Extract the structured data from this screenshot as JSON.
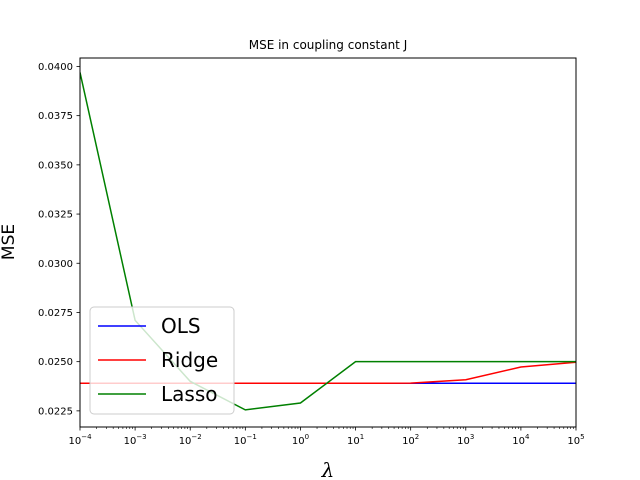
{
  "chart_data": {
    "type": "line",
    "title": "MSE in coupling constant J",
    "xlabel": "λ",
    "ylabel": "MSE",
    "x_scale": "log",
    "x_base_label": "10",
    "x_exponents": [
      -4,
      -3,
      -2,
      -1,
      0,
      1,
      2,
      3,
      4,
      5
    ],
    "x": [
      0.0001,
      0.001,
      0.01,
      0.1,
      1,
      10,
      100,
      1000,
      10000,
      100000
    ],
    "xlim": [
      0.0001,
      100000
    ],
    "ylim": [
      0.02168,
      0.04043
    ],
    "y_ticks": [
      "0.0225",
      "0.0250",
      "0.0275",
      "0.0300",
      "0.0325",
      "0.0350",
      "0.0375",
      "0.0400"
    ],
    "legend_position": "lower-left",
    "grid": false,
    "series": [
      {
        "name": "OLS",
        "color": "#0000ff",
        "values": [
          0.0239,
          0.0239,
          0.0239,
          0.0239,
          0.0239,
          0.0239,
          0.0239,
          0.0239,
          0.0239,
          0.0239
        ]
      },
      {
        "name": "Ridge",
        "color": "#ff0000",
        "values": [
          0.0239,
          0.0239,
          0.0239,
          0.0239,
          0.0239,
          0.0239,
          0.02391,
          0.02408,
          0.02473,
          0.02497
        ]
      },
      {
        "name": "Lasso",
        "color": "#008000",
        "values": [
          0.0397,
          0.0271,
          0.024,
          0.02255,
          0.0229,
          0.025,
          0.025,
          0.025,
          0.025,
          0.025
        ]
      }
    ]
  }
}
